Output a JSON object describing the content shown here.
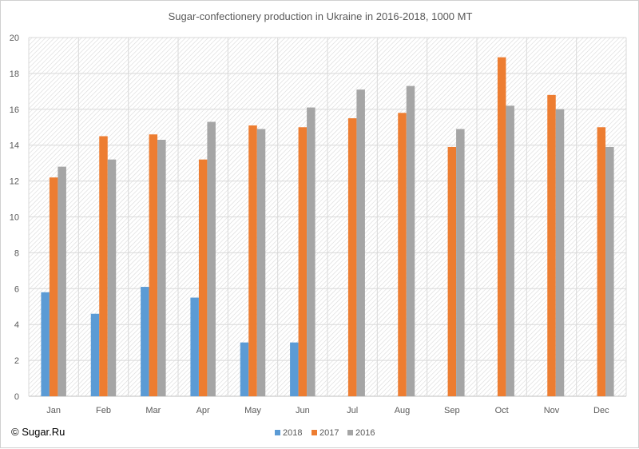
{
  "chart_data": {
    "type": "bar",
    "title": "Sugar-confectionery production in Ukraine in 2016-2018, 1000 MT",
    "categories": [
      "Jan",
      "Feb",
      "Mar",
      "Apr",
      "May",
      "Jun",
      "Jul",
      "Aug",
      "Sep",
      "Oct",
      "Nov",
      "Dec"
    ],
    "series": [
      {
        "name": "2018",
        "color": "#5b9bd5",
        "values": [
          5.8,
          4.6,
          6.1,
          5.5,
          3.0,
          3.0,
          null,
          null,
          null,
          null,
          null,
          null
        ]
      },
      {
        "name": "2017",
        "color": "#ed7d31",
        "values": [
          12.2,
          14.5,
          14.6,
          13.2,
          15.1,
          15.0,
          15.5,
          15.8,
          13.9,
          18.9,
          16.8,
          15.0
        ]
      },
      {
        "name": "2016",
        "color": "#a5a5a5",
        "values": [
          12.8,
          13.2,
          14.3,
          15.3,
          14.9,
          16.1,
          17.1,
          17.3,
          14.9,
          16.2,
          16.0,
          13.9
        ]
      }
    ],
    "xlabel": "",
    "ylabel": "",
    "ylim": [
      0,
      20
    ],
    "yticks": [
      0,
      2,
      4,
      6,
      8,
      10,
      12,
      14,
      16,
      18,
      20
    ],
    "grid": true,
    "legend_position": "bottom",
    "plot_background": "hatched"
  },
  "credit": "© Sugar.Ru"
}
